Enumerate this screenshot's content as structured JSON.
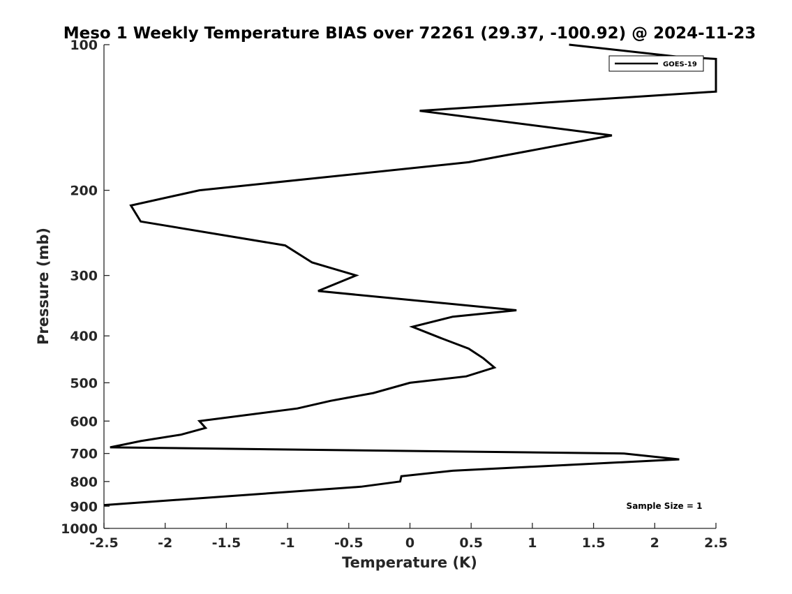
{
  "chart_data": {
    "type": "line",
    "title": "Meso 1 Weekly Temperature BIAS over 72261 (29.37, -100.92) @ 2024-11-23",
    "xlabel": "Temperature (K)",
    "ylabel": "Pressure (mb)",
    "xlim": [
      -2.5,
      2.5
    ],
    "ylim": [
      100,
      1000
    ],
    "yscale": "log",
    "yreversed": true,
    "xticks": [
      "-2.5",
      "-2",
      "-1.5",
      "-1",
      "-0.5",
      "0",
      "0.5",
      "1",
      "1.5",
      "2",
      "2.5"
    ],
    "yticks": [
      "100",
      "200",
      "300",
      "400",
      "500",
      "600",
      "700",
      "800",
      "900",
      "1000"
    ],
    "grid": false,
    "legend_position": "top-right",
    "line_color": "#000000",
    "annotation": "Sample Size = 1",
    "series": [
      {
        "name": "GOES-19",
        "points": [
          [
            1.3,
            100
          ],
          [
            2.2,
            106
          ],
          [
            2.5,
            107
          ],
          [
            2.5,
            125
          ],
          [
            0.08,
            137
          ],
          [
            1.65,
            154
          ],
          [
            0.48,
            175
          ],
          [
            -1.72,
            200
          ],
          [
            -2.28,
            215
          ],
          [
            -2.2,
            232
          ],
          [
            -1.02,
            260
          ],
          [
            -0.8,
            282
          ],
          [
            -0.44,
            300
          ],
          [
            -0.75,
            323
          ],
          [
            0.87,
            354
          ],
          [
            0.35,
            365
          ],
          [
            0.02,
            383
          ],
          [
            0.25,
            404
          ],
          [
            0.48,
            425
          ],
          [
            0.6,
            445
          ],
          [
            0.69,
            465
          ],
          [
            0.46,
            485
          ],
          [
            0.0,
            500
          ],
          [
            -0.3,
            525
          ],
          [
            -0.65,
            545
          ],
          [
            -0.92,
            565
          ],
          [
            -1.72,
            600
          ],
          [
            -1.67,
            620
          ],
          [
            -1.87,
            640
          ],
          [
            -2.2,
            660
          ],
          [
            -2.45,
            680
          ],
          [
            1.75,
            700
          ],
          [
            2.2,
            720
          ],
          [
            0.35,
            760
          ],
          [
            -0.07,
            780
          ],
          [
            -0.08,
            800
          ],
          [
            -0.4,
            820
          ],
          [
            -2.5,
            895
          ]
        ]
      }
    ]
  }
}
